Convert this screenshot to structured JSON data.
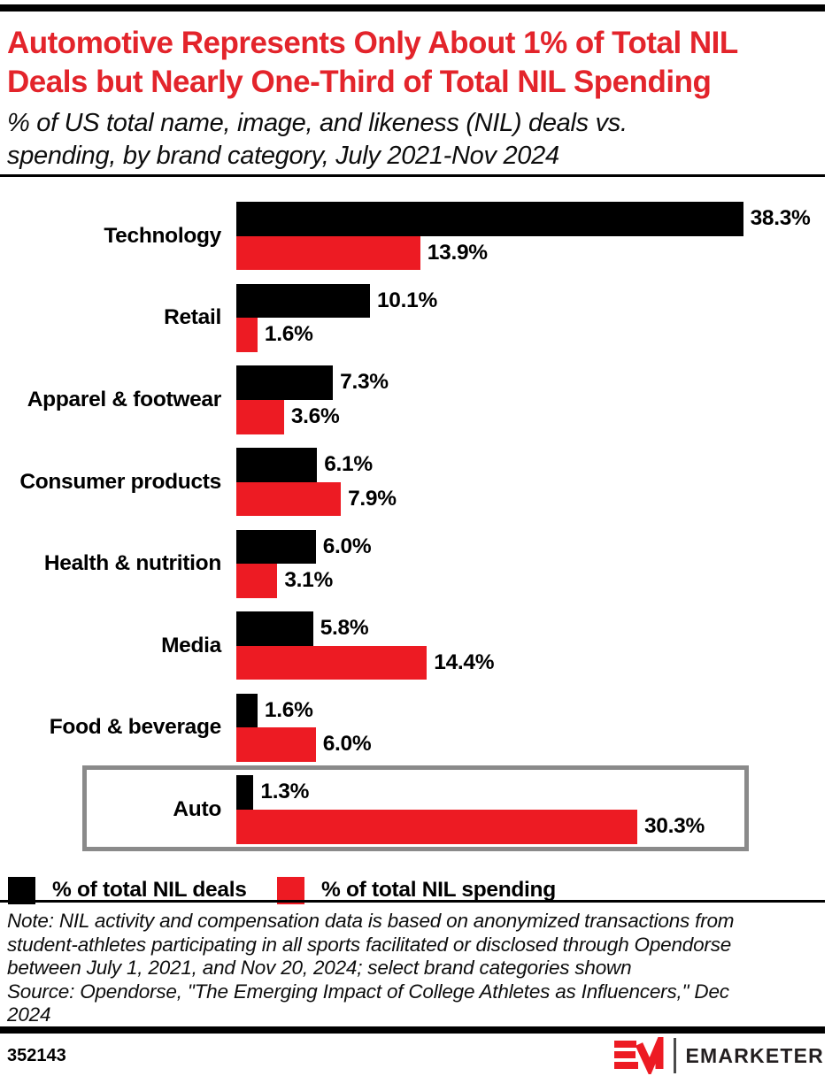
{
  "header": {
    "title_lines": [
      "Automotive Represents Only About 1% of Total NIL",
      "Deals but Nearly One-Third of Total NIL Spending"
    ],
    "subtitle_lines": [
      "% of US total name, image, and likeness (NIL) deals vs.",
      "spending, by brand category, July 2021-Nov 2024"
    ]
  },
  "colors": {
    "title_red": "#E3242B",
    "bar_black": "#000000",
    "bar_red": "#ED1B23",
    "highlight_border": "#8A8A8A"
  },
  "chart_data": {
    "type": "bar",
    "orientation": "horizontal",
    "categories": [
      "Technology",
      "Retail",
      "Apparel & footwear",
      "Consumer products",
      "Health & nutrition",
      "Media",
      "Food & beverage",
      "Auto"
    ],
    "series": [
      {
        "name": "% of total NIL deals",
        "color": "#000000",
        "values": [
          38.3,
          10.1,
          7.3,
          6.1,
          6.0,
          5.8,
          1.6,
          1.3
        ]
      },
      {
        "name": "% of total NIL spending",
        "color": "#ED1B23",
        "values": [
          13.9,
          1.6,
          3.6,
          7.9,
          3.1,
          14.4,
          6.0,
          30.3
        ]
      }
    ],
    "value_suffix": "%",
    "value_decimals": 1,
    "xlim": [
      0,
      40
    ],
    "grid": false,
    "legend_position": "bottom",
    "highlighted_category": "Auto"
  },
  "legend": [
    {
      "label": "% of total NIL deals",
      "color": "#000000"
    },
    {
      "label": "% of total NIL spending",
      "color": "#ED1B23"
    }
  ],
  "note_lines": [
    "Note: NIL activity and compensation data is based on anonymized transactions from",
    "student-athletes participating in all sports facilitated or disclosed through Opendorse",
    "between July 1, 2021, and Nov 20, 2024; select brand categories shown",
    "Source: Opendorse, \"The Emerging Impact of College Athletes as Influencers,\" Dec",
    "2024"
  ],
  "footer": {
    "chart_id": "352143",
    "brand": "EMARKETER",
    "logo_monogram": "EM"
  }
}
